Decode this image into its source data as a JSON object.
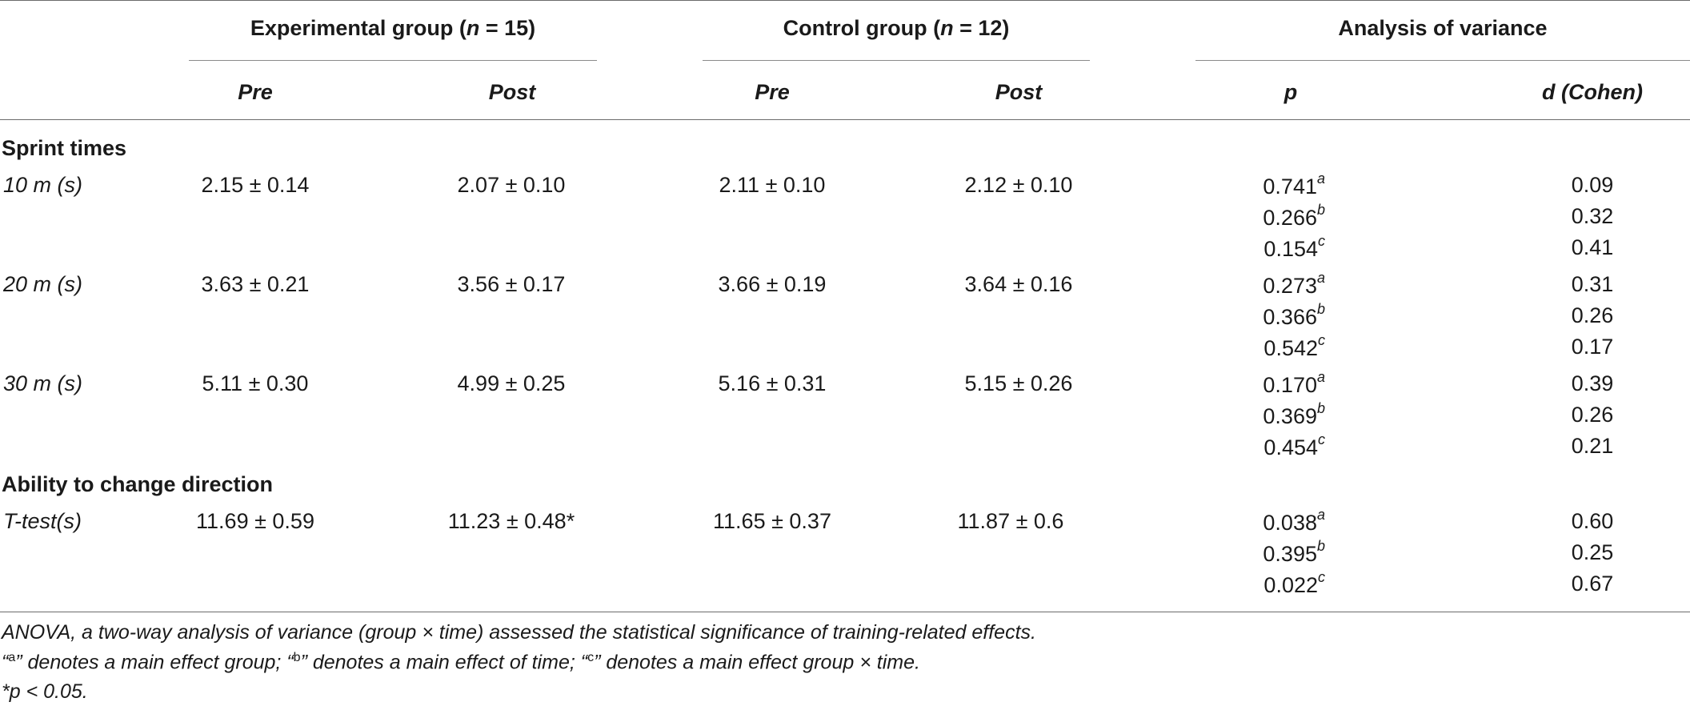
{
  "header": {
    "groups": [
      {
        "label": "Experimental group (",
        "n": "n",
        "eq": " = 15)"
      },
      {
        "label": "Control group (",
        "n": "n",
        "eq": " = 12)"
      },
      {
        "label": "Analysis of variance"
      }
    ],
    "subheaders": [
      "Pre",
      "Post",
      "Pre",
      "Post",
      "p",
      "d (Cohen)"
    ]
  },
  "sections": [
    {
      "title": "Sprint times",
      "rows": [
        {
          "label": "10 m (s)",
          "exp_pre": "2.15 ± 0.14",
          "exp_post": "2.07 ± 0.10",
          "ctl_pre": "2.11 ± 0.10",
          "ctl_post": "2.12 ± 0.10",
          "p": [
            {
              "v": "0.741",
              "s": "a"
            },
            {
              "v": "0.266",
              "s": "b"
            },
            {
              "v": "0.154",
              "s": "c"
            }
          ],
          "d": [
            "0.09",
            "0.32",
            "0.41"
          ]
        },
        {
          "label": "20 m (s)",
          "exp_pre": "3.63 ± 0.21",
          "exp_post": "3.56 ± 0.17",
          "ctl_pre": "3.66 ± 0.19",
          "ctl_post": "3.64 ± 0.16",
          "p": [
            {
              "v": "0.273",
              "s": "a"
            },
            {
              "v": "0.366",
              "s": "b"
            },
            {
              "v": "0.542",
              "s": "c"
            }
          ],
          "d": [
            "0.31",
            "0.26",
            "0.17"
          ]
        },
        {
          "label": "30 m (s)",
          "exp_pre": "5.11 ± 0.30",
          "exp_post": "4.99 ± 0.25",
          "ctl_pre": "5.16 ± 0.31",
          "ctl_post": "5.15 ± 0.26",
          "p": [
            {
              "v": "0.170",
              "s": "a"
            },
            {
              "v": "0.369",
              "s": "b"
            },
            {
              "v": "0.454",
              "s": "c"
            }
          ],
          "d": [
            "0.39",
            "0.26",
            "0.21"
          ]
        }
      ]
    },
    {
      "title": "Ability to change direction",
      "rows": [
        {
          "label": "T-test(s)",
          "exp_pre": "11.69 ± 0.59",
          "exp_post": "11.23 ± 0.48*",
          "ctl_pre": "11.65 ± 0.37",
          "ctl_post": "11.87 ± 0.6",
          "p": [
            {
              "v": "0.038",
              "s": "a"
            },
            {
              "v": "0.395",
              "s": "b"
            },
            {
              "v": "0.022",
              "s": "c"
            }
          ],
          "d": [
            "0.60",
            "0.25",
            "0.67"
          ]
        }
      ]
    }
  ],
  "footnotes": {
    "line1": "ANOVA, a two-way analysis of variance (group × time) assessed the statistical significance of training-related effects.",
    "line2": {
      "q1": "“",
      "a": "a",
      "t1": "” denotes a main effect group; “",
      "b": "b",
      "t2": "” denotes a main effect of time; “",
      "c": "c",
      "t3": "” denotes a main effect group × time."
    },
    "line3": "*p < 0.05."
  }
}
